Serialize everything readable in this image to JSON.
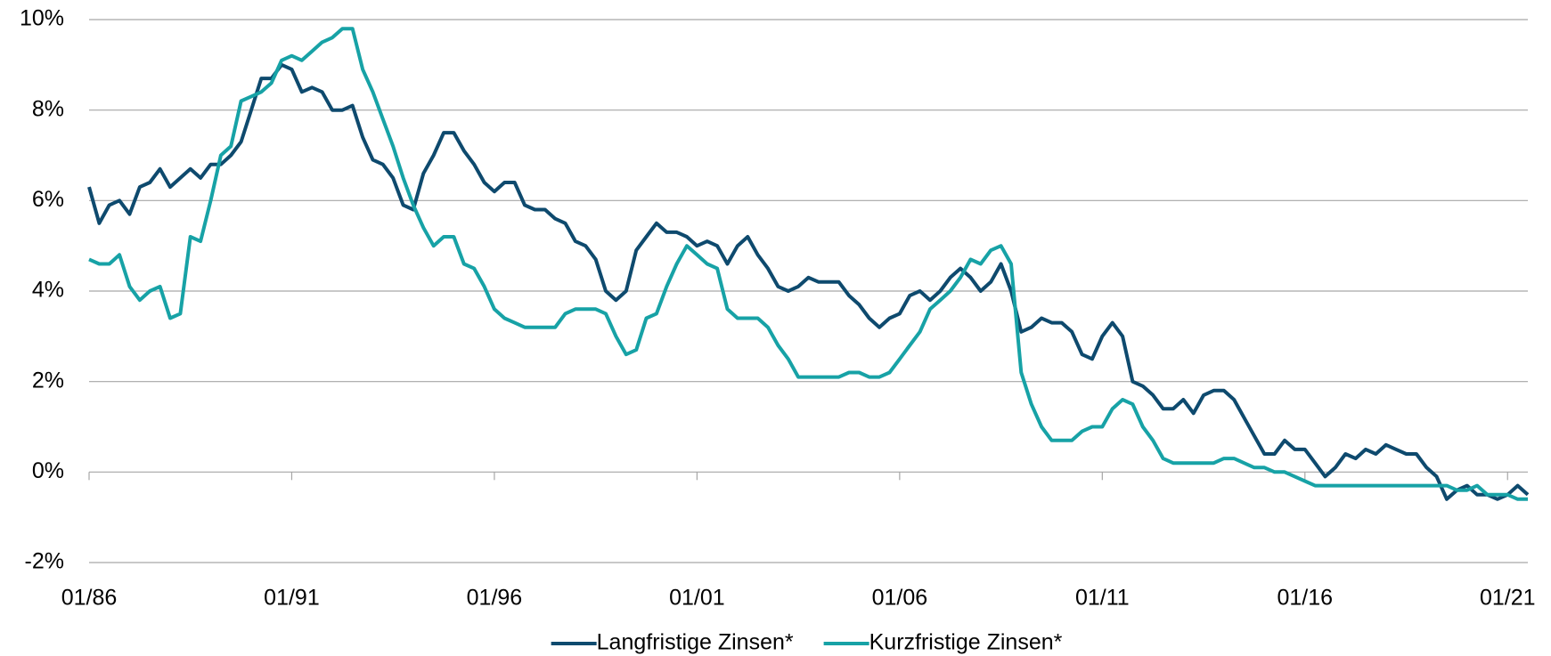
{
  "chart_data": {
    "type": "line",
    "x": [
      "1986-01",
      "1986-04",
      "1986-07",
      "1986-10",
      "1987-01",
      "1987-04",
      "1987-07",
      "1987-10",
      "1988-01",
      "1988-04",
      "1988-07",
      "1988-10",
      "1989-01",
      "1989-04",
      "1989-07",
      "1989-10",
      "1990-01",
      "1990-04",
      "1990-07",
      "1990-10",
      "1991-01",
      "1991-04",
      "1991-07",
      "1991-10",
      "1992-01",
      "1992-04",
      "1992-07",
      "1992-10",
      "1993-01",
      "1993-04",
      "1993-07",
      "1993-10",
      "1994-01",
      "1994-04",
      "1994-07",
      "1994-10",
      "1995-01",
      "1995-04",
      "1995-07",
      "1995-10",
      "1996-01",
      "1996-04",
      "1996-07",
      "1996-10",
      "1997-01",
      "1997-04",
      "1997-07",
      "1997-10",
      "1998-01",
      "1998-04",
      "1998-07",
      "1998-10",
      "1999-01",
      "1999-04",
      "1999-07",
      "1999-10",
      "2000-01",
      "2000-04",
      "2000-07",
      "2000-10",
      "2001-01",
      "2001-04",
      "2001-07",
      "2001-10",
      "2002-01",
      "2002-04",
      "2002-07",
      "2002-10",
      "2003-01",
      "2003-04",
      "2003-07",
      "2003-10",
      "2004-01",
      "2004-04",
      "2004-07",
      "2004-10",
      "2005-01",
      "2005-04",
      "2005-07",
      "2005-10",
      "2006-01",
      "2006-04",
      "2006-07",
      "2006-10",
      "2007-01",
      "2007-04",
      "2007-07",
      "2007-10",
      "2008-01",
      "2008-04",
      "2008-07",
      "2008-10",
      "2009-01",
      "2009-04",
      "2009-07",
      "2009-10",
      "2010-01",
      "2010-04",
      "2010-07",
      "2010-10",
      "2011-01",
      "2011-04",
      "2011-07",
      "2011-10",
      "2012-01",
      "2012-04",
      "2012-07",
      "2012-10",
      "2013-01",
      "2013-04",
      "2013-07",
      "2013-10",
      "2014-01",
      "2014-04",
      "2014-07",
      "2014-10",
      "2015-01",
      "2015-04",
      "2015-07",
      "2015-10",
      "2016-01",
      "2016-04",
      "2016-07",
      "2016-10",
      "2017-01",
      "2017-04",
      "2017-07",
      "2017-10",
      "2018-01",
      "2018-04",
      "2018-07",
      "2018-10",
      "2019-01",
      "2019-04",
      "2019-07",
      "2019-10",
      "2020-01",
      "2020-04",
      "2020-07",
      "2020-10",
      "2021-01",
      "2021-04",
      "2021-07"
    ],
    "series": [
      {
        "name": "Langfristige Zinsen*",
        "color": "#0e4a6e",
        "values": [
          6.3,
          5.5,
          5.9,
          6.0,
          5.7,
          6.3,
          6.4,
          6.7,
          6.3,
          6.5,
          6.7,
          6.5,
          6.8,
          6.8,
          7.0,
          7.3,
          8.0,
          8.7,
          8.7,
          9.0,
          8.9,
          8.4,
          8.5,
          8.4,
          8.0,
          8.0,
          8.1,
          7.4,
          6.9,
          6.8,
          6.5,
          5.9,
          5.8,
          6.6,
          7.0,
          7.5,
          7.5,
          7.1,
          6.8,
          6.4,
          6.2,
          6.4,
          6.4,
          5.9,
          5.8,
          5.8,
          5.6,
          5.5,
          5.1,
          5.0,
          4.7,
          4.0,
          3.8,
          4.0,
          4.9,
          5.2,
          5.5,
          5.3,
          5.3,
          5.2,
          5.0,
          5.1,
          5.0,
          4.6,
          5.0,
          5.2,
          4.8,
          4.5,
          4.1,
          4.0,
          4.1,
          4.3,
          4.2,
          4.2,
          4.2,
          3.9,
          3.7,
          3.4,
          3.2,
          3.4,
          3.5,
          3.9,
          4.0,
          3.8,
          4.0,
          4.3,
          4.5,
          4.3,
          4.0,
          4.2,
          4.6,
          4.0,
          3.1,
          3.2,
          3.4,
          3.3,
          3.3,
          3.1,
          2.6,
          2.5,
          3.0,
          3.3,
          3.0,
          2.0,
          1.9,
          1.7,
          1.4,
          1.4,
          1.6,
          1.3,
          1.7,
          1.8,
          1.8,
          1.6,
          1.2,
          0.8,
          0.4,
          0.4,
          0.7,
          0.5,
          0.5,
          0.2,
          -0.1,
          0.1,
          0.4,
          0.3,
          0.5,
          0.4,
          0.6,
          0.5,
          0.4,
          0.4,
          0.1,
          -0.1,
          -0.6,
          -0.4,
          -0.3,
          -0.5,
          -0.5,
          -0.6,
          -0.5,
          -0.3,
          -0.5
        ]
      },
      {
        "name": "Kurzfristige Zinsen*",
        "color": "#17a2a6",
        "values": [
          4.7,
          4.6,
          4.6,
          4.8,
          4.1,
          3.8,
          4.0,
          4.1,
          3.4,
          3.5,
          5.2,
          5.1,
          6.0,
          7.0,
          7.2,
          8.2,
          8.3,
          8.4,
          8.6,
          9.1,
          9.2,
          9.1,
          9.3,
          9.5,
          9.6,
          9.8,
          9.8,
          8.9,
          8.4,
          7.8,
          7.2,
          6.5,
          5.9,
          5.4,
          5.0,
          5.2,
          5.2,
          4.6,
          4.5,
          4.1,
          3.6,
          3.4,
          3.3,
          3.2,
          3.2,
          3.2,
          3.2,
          3.5,
          3.6,
          3.6,
          3.6,
          3.5,
          3.0,
          2.6,
          2.7,
          3.4,
          3.5,
          4.1,
          4.6,
          5.0,
          4.8,
          4.6,
          4.5,
          3.6,
          3.4,
          3.4,
          3.4,
          3.2,
          2.8,
          2.5,
          2.1,
          2.1,
          2.1,
          2.1,
          2.1,
          2.2,
          2.2,
          2.1,
          2.1,
          2.2,
          2.5,
          2.8,
          3.1,
          3.6,
          3.8,
          4.0,
          4.3,
          4.7,
          4.6,
          4.9,
          5.0,
          4.6,
          2.2,
          1.5,
          1.0,
          0.7,
          0.7,
          0.7,
          0.9,
          1.0,
          1.0,
          1.4,
          1.6,
          1.5,
          1.0,
          0.7,
          0.3,
          0.2,
          0.2,
          0.2,
          0.2,
          0.2,
          0.3,
          0.3,
          0.2,
          0.1,
          0.1,
          0.0,
          0.0,
          -0.1,
          -0.2,
          -0.3,
          -0.3,
          -0.3,
          -0.3,
          -0.3,
          -0.3,
          -0.3,
          -0.3,
          -0.3,
          -0.3,
          -0.3,
          -0.3,
          -0.3,
          -0.3,
          -0.4,
          -0.4,
          -0.3,
          -0.5,
          -0.5,
          -0.5,
          -0.6,
          -0.6
        ]
      }
    ],
    "xlim": [
      "1986-01",
      "2021-07"
    ],
    "xticks": [
      {
        "value": "1986-01",
        "label": "01/86"
      },
      {
        "value": "1991-01",
        "label": "01/91"
      },
      {
        "value": "1996-01",
        "label": "01/96"
      },
      {
        "value": "2001-01",
        "label": "01/01"
      },
      {
        "value": "2006-01",
        "label": "01/06"
      },
      {
        "value": "2011-01",
        "label": "01/11"
      },
      {
        "value": "2016-01",
        "label": "01/16"
      },
      {
        "value": "2021-01",
        "label": "01/21"
      }
    ],
    "ylim": [
      -2,
      10
    ],
    "yticks": [
      {
        "value": -2,
        "label": "-2%"
      },
      {
        "value": 0,
        "label": "0%"
      },
      {
        "value": 2,
        "label": "2%"
      },
      {
        "value": 4,
        "label": "4%"
      },
      {
        "value": 6,
        "label": "6%"
      },
      {
        "value": 8,
        "label": "8%"
      },
      {
        "value": 10,
        "label": "10%"
      }
    ],
    "grid": true,
    "legend": "bottom"
  }
}
